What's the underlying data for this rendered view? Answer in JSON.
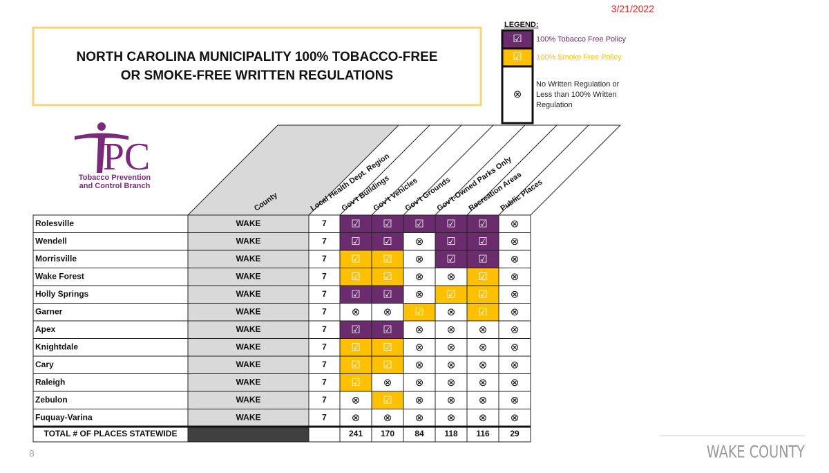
{
  "date": "3/21/2022",
  "title": {
    "lines": [
      "NORTH CAROLINA MUNICIPALITY 100% TOBACCO-FREE",
      "OR SMOKE-FREE WRITTEN REGULATIONS"
    ]
  },
  "legend": {
    "title": "LEGEND:",
    "items": [
      {
        "symbol": "☑",
        "label": [
          "100% Tobacco Free Policy"
        ],
        "color": "#6b2c6e",
        "text_color": "#6b2c6e"
      },
      {
        "symbol": "☑",
        "label": [
          "100% Smoke Free Policy"
        ],
        "color": "#ffc000",
        "text_color": "#ffc000"
      },
      {
        "symbol": "⊗",
        "label": [
          "No Written Regulation or",
          "Less than 100% Written",
          "Regulation"
        ],
        "color": "#ffffff",
        "text_color": "#222222"
      }
    ]
  },
  "logo": {
    "letters": "PC",
    "lines": [
      "Tobacco Prevention",
      "and Control Branch"
    ]
  },
  "table": {
    "headers": [
      "County",
      "Local Health Dept. Region",
      "Gov't Buildings",
      "Gov't Vehicles",
      "Gov't Grounds",
      "Gov't-Owned Parks Only",
      "Recreation Areas",
      "Public Places"
    ],
    "rows": [
      {
        "name": "Rolesville",
        "county": "WAKE",
        "region": 7,
        "status": [
          0,
          0,
          0,
          0,
          0,
          2
        ]
      },
      {
        "name": "Wendell",
        "county": "WAKE",
        "region": 7,
        "status": [
          0,
          0,
          2,
          0,
          0,
          2
        ]
      },
      {
        "name": "Morrisville",
        "county": "WAKE",
        "region": 7,
        "status": [
          1,
          1,
          2,
          0,
          0,
          2
        ]
      },
      {
        "name": "Wake Forest",
        "county": "WAKE",
        "region": 7,
        "status": [
          1,
          1,
          2,
          2,
          1,
          2
        ]
      },
      {
        "name": "Holly Springs",
        "county": "WAKE",
        "region": 7,
        "status": [
          0,
          0,
          2,
          1,
          1,
          2
        ]
      },
      {
        "name": "Garner",
        "county": "WAKE",
        "region": 7,
        "status": [
          2,
          2,
          1,
          2,
          1,
          2
        ]
      },
      {
        "name": "Apex",
        "county": "WAKE",
        "region": 7,
        "status": [
          0,
          0,
          2,
          2,
          2,
          2
        ]
      },
      {
        "name": "Knightdale",
        "county": "WAKE",
        "region": 7,
        "status": [
          1,
          1,
          2,
          2,
          2,
          2
        ]
      },
      {
        "name": "Cary",
        "county": "WAKE",
        "region": 7,
        "status": [
          1,
          1,
          2,
          2,
          2,
          2
        ]
      },
      {
        "name": "Raleigh",
        "county": "WAKE",
        "region": 7,
        "status": [
          1,
          2,
          2,
          2,
          2,
          2
        ]
      },
      {
        "name": "Zebulon",
        "county": "WAKE",
        "region": 7,
        "status": [
          2,
          1,
          2,
          2,
          2,
          2
        ]
      },
      {
        "name": "Fuquay-Varina",
        "county": "WAKE",
        "region": 7,
        "status": [
          2,
          2,
          2,
          2,
          2,
          2
        ]
      }
    ],
    "total": {
      "label": "TOTAL # OF PLACES STATEWIDE",
      "values": [
        241,
        170,
        84,
        118,
        116,
        29
      ]
    }
  },
  "footer": {
    "page": "8",
    "brand": "WAKE COUNTY"
  }
}
